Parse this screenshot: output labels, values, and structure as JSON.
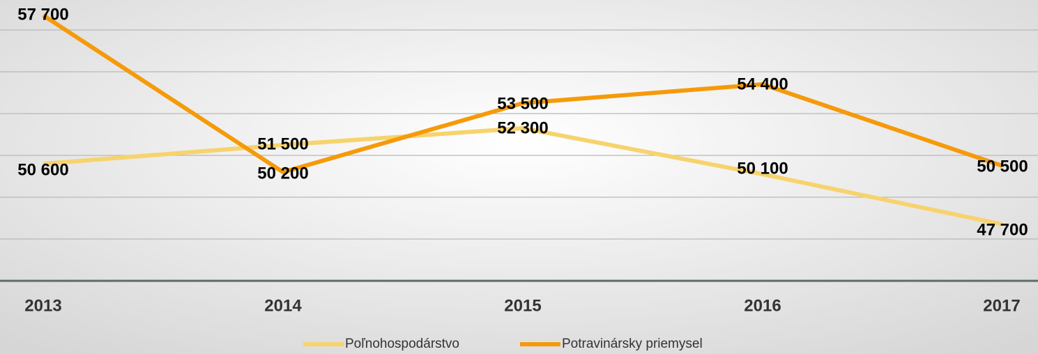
{
  "chart_data": {
    "type": "line",
    "categories": [
      "2013",
      "2014",
      "2015",
      "2016",
      "2017"
    ],
    "series": [
      {
        "name": "Poľnohospodárstvo",
        "color": "#f7d36e",
        "values": [
          50600,
          51500,
          52300,
          50100,
          47700
        ],
        "value_labels": [
          "50 600",
          "51 500",
          "52 300",
          "50 100",
          "47 700"
        ]
      },
      {
        "name": "Potravinársky priemysel",
        "color": "#f59a0a",
        "values": [
          57700,
          50200,
          53500,
          54400,
          50500
        ],
        "value_labels": [
          "57 700",
          "50 200",
          "53 500",
          "54 400",
          "50 500"
        ]
      }
    ],
    "ylim": [
      45000,
      58000
    ],
    "yticks": [
      45000,
      47000,
      49000,
      51000,
      53000,
      55000,
      57000
    ],
    "grid": true
  }
}
